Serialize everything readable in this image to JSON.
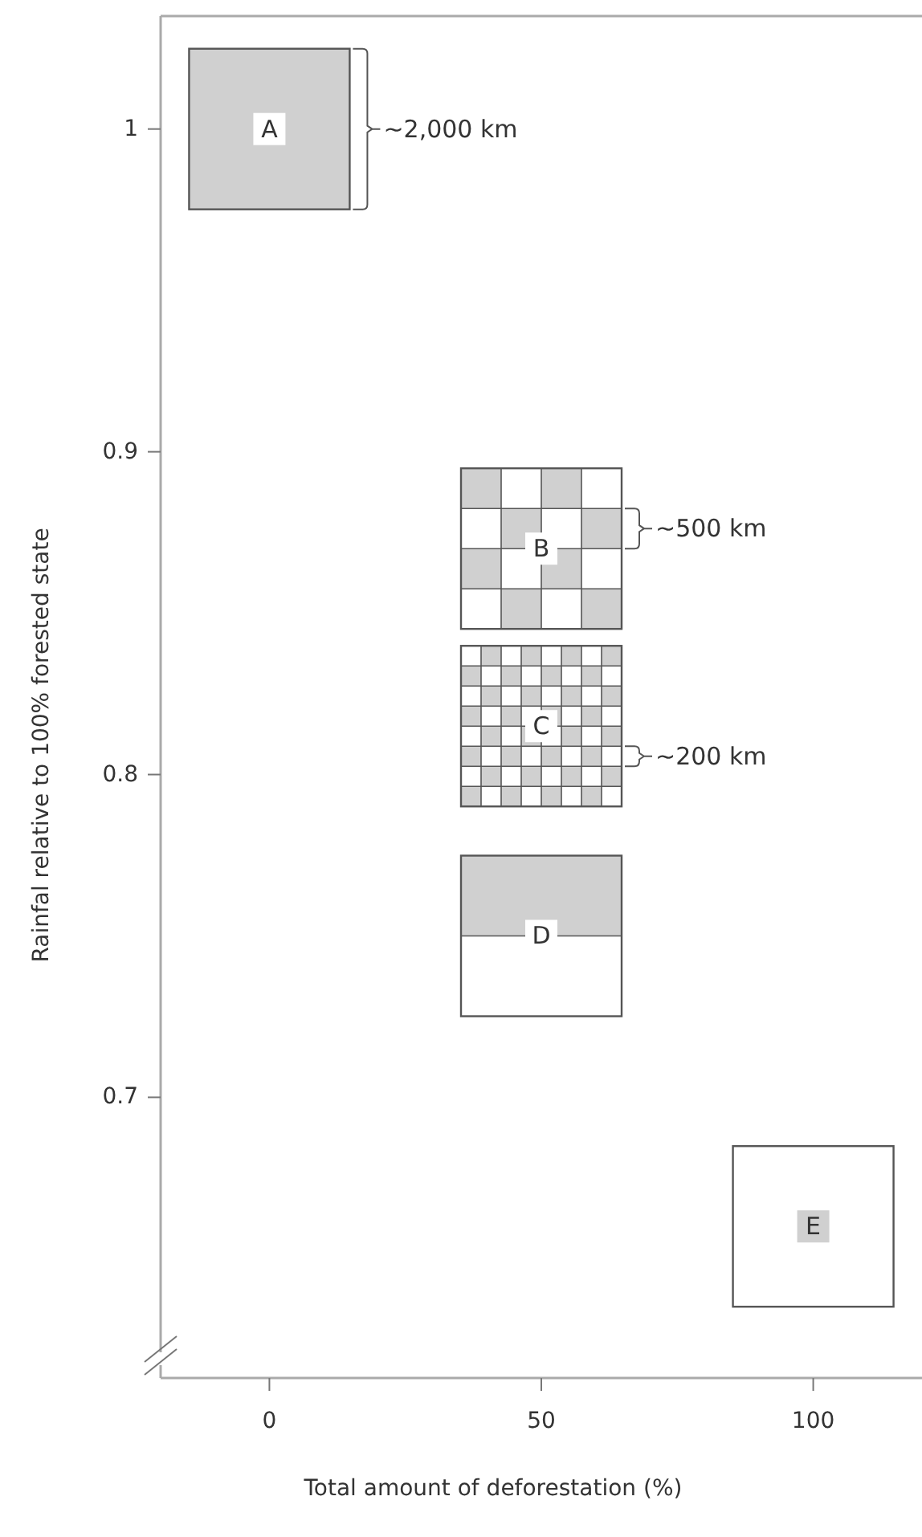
{
  "chart_data": {
    "type": "scatter",
    "xlabel": "Total amount of deforestation (%)",
    "ylabel": "Rainfal relative to 100% forested state",
    "series": [
      {
        "colors": [
          "#ffffff",
          "#ffffff",
          "#ffffff",
          "#ffffff",
          "#d0d0d0"
        ],
        "x": [
          0,
          50,
          50,
          50,
          100
        ],
        "values": [
          1,
          0.87,
          0.815,
          0.75,
          0.66
        ]
      }
    ],
    "marker": "square",
    "xlim": [
      -20,
      120
    ],
    "xticks": [
      0,
      50,
      100
    ],
    "ylim": [
      0.62,
      1.035
    ],
    "yticks": [
      {
        "value": 0.7,
        "label": "0.7"
      },
      {
        "value": 0.8,
        "label": "0.8"
      },
      {
        "value": 0.9,
        "label": "0.9"
      },
      {
        "value": 1,
        "label": "1"
      }
    ],
    "grid": false,
    "annotations": [
      {
        "text": "A",
        "x": 0,
        "y": 1
      },
      {
        "text": "B",
        "x": 50,
        "y": 0.87
      },
      {
        "text": "C",
        "x": 50,
        "y": 0.815
      },
      {
        "text": "D",
        "x": 50,
        "y": 0.75
      },
      {
        "text": "E",
        "x": 100,
        "y": 0.66
      },
      "~2,000 km",
      "~500 km",
      "~200 km"
    ]
  }
}
